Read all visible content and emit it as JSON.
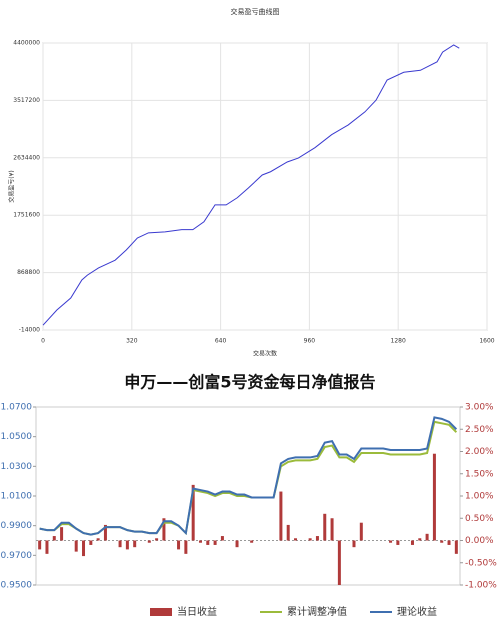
{
  "chart_data": [
    {
      "type": "line",
      "title": "交易盈亏曲线图",
      "y_label": "交易盈亏(¥)",
      "x_label": "交易次数",
      "color": "#3a3acf",
      "grid": true,
      "xlim": [
        0,
        1600
      ],
      "xticks": [
        0,
        320,
        640,
        960,
        1280,
        1600
      ],
      "ylim": [
        -14000,
        4400000
      ],
      "yticks": [
        -14000,
        868800,
        1751600,
        2634400,
        3517200,
        4400000
      ],
      "x": [
        0,
        50,
        100,
        140,
        160,
        200,
        260,
        300,
        340,
        380,
        440,
        500,
        540,
        580,
        620,
        660,
        700,
        740,
        790,
        820,
        880,
        920,
        980,
        1040,
        1100,
        1160,
        1200,
        1240,
        1300,
        1360,
        1420,
        1440,
        1480,
        1500
      ],
      "values": [
        60000,
        293000,
        478000,
        755000,
        830000,
        940000,
        1060000,
        1216000,
        1400000,
        1480000,
        1495000,
        1530000,
        1530000,
        1650000,
        1910000,
        1910000,
        2020000,
        2170000,
        2370000,
        2420000,
        2570000,
        2630000,
        2790000,
        2990000,
        3140000,
        3340000,
        3520000,
        3830000,
        3950000,
        3980000,
        4110000,
        4260000,
        4370000,
        4320000
      ]
    },
    {
      "type": "combo",
      "title": "申万——创富5号资金每日净值报告",
      "legend": "bottom",
      "categories": [
        null,
        null,
        null,
        null,
        null,
        null,
        null,
        null,
        null,
        null,
        null,
        null,
        null,
        null,
        null,
        null,
        null,
        null,
        null,
        null,
        null,
        null,
        null,
        null,
        null,
        null,
        null,
        null,
        null,
        null,
        null,
        null,
        null,
        null,
        null,
        null,
        null,
        null,
        null,
        null,
        null,
        null,
        null,
        null,
        null,
        null,
        null,
        null,
        null,
        null,
        null,
        null,
        null,
        null,
        null,
        null,
        null,
        null
      ],
      "ylim": [
        0.95,
        1.07
      ],
      "yticks": [
        {
          "value": 0.95,
          "label": "0.9500"
        },
        {
          "value": 0.97,
          "label": "0.9700"
        },
        {
          "value": 0.99,
          "label": "0.9900"
        },
        {
          "value": 1.01,
          "label": "1.0100"
        },
        {
          "value": 1.03,
          "label": "1.0300"
        },
        {
          "value": 1.05,
          "label": "1.0500"
        },
        {
          "value": 1.07,
          "label": "1.0700"
        }
      ],
      "y2lim": [
        -1,
        3
      ],
      "y2ticks": [
        {
          "value": -1,
          "label": "-1.00%"
        },
        {
          "value": -0.5,
          "label": "-0.50%"
        },
        {
          "value": 0,
          "label": "0.00%"
        },
        {
          "value": 0.5,
          "label": "0.50%"
        },
        {
          "value": 1,
          "label": "1.00%"
        },
        {
          "value": 1.5,
          "label": "1.50%"
        },
        {
          "value": 2,
          "label": "2.00%"
        },
        {
          "value": 2.5,
          "label": "2.50%"
        },
        {
          "value": 3,
          "label": "3.00%"
        }
      ],
      "series": [
        {
          "name": "当日收益",
          "type": "bar",
          "axis": "y2",
          "color": "#b03a3a",
          "values": [
            -0.2,
            -0.3,
            0.1,
            0.3,
            0,
            -0.25,
            -0.35,
            -0.1,
            0.05,
            0.35,
            0,
            -0.15,
            -0.2,
            -0.15,
            0,
            -0.05,
            0.05,
            0.5,
            0,
            -0.2,
            -0.3,
            1.25,
            -0.05,
            -0.1,
            -0.1,
            0.1,
            0,
            -0.15,
            0,
            -0.05,
            0,
            0,
            0,
            1.1,
            0.35,
            0.05,
            0,
            0.05,
            0.1,
            0.6,
            0.5,
            -1.0,
            0,
            -0.15,
            0.4,
            0,
            0,
            0,
            -0.05,
            -0.1,
            0,
            -0.1,
            0.05,
            0.15,
            1.95,
            -0.05,
            -0.1,
            -0.3
          ]
        },
        {
          "name": "累计调整净值",
          "type": "line",
          "color": "#9bbb3b",
          "values": [
            0.988,
            0.987,
            0.987,
            0.991,
            0.991,
            0.988,
            0.985,
            0.984,
            0.985,
            0.989,
            0.989,
            0.989,
            0.987,
            0.986,
            0.986,
            0.985,
            0.985,
            0.992,
            0.992,
            0.99,
            0.985,
            1.014,
            1.013,
            1.012,
            1.01,
            1.012,
            1.012,
            1.01,
            1.01,
            1.009,
            1.009,
            1.009,
            1.009,
            1.03,
            1.033,
            1.034,
            1.034,
            1.034,
            1.035,
            1.043,
            1.044,
            1.036,
            1.036,
            1.033,
            1.039,
            1.039,
            1.039,
            1.039,
            1.038,
            1.038,
            1.038,
            1.038,
            1.038,
            1.039,
            1.06,
            1.059,
            1.058,
            1.053
          ]
        },
        {
          "name": "理论收益",
          "type": "line",
          "color": "#3f6fb0",
          "values": [
            0.988,
            0.987,
            0.987,
            0.992,
            0.992,
            0.988,
            0.985,
            0.984,
            0.985,
            0.989,
            0.989,
            0.989,
            0.987,
            0.986,
            0.986,
            0.985,
            0.985,
            0.993,
            0.993,
            0.99,
            0.985,
            1.015,
            1.014,
            1.013,
            1.011,
            1.013,
            1.013,
            1.011,
            1.011,
            1.009,
            1.009,
            1.009,
            1.009,
            1.032,
            1.035,
            1.036,
            1.036,
            1.036,
            1.037,
            1.046,
            1.047,
            1.038,
            1.038,
            1.035,
            1.042,
            1.042,
            1.042,
            1.042,
            1.041,
            1.041,
            1.041,
            1.041,
            1.041,
            1.042,
            1.063,
            1.062,
            1.06,
            1.055
          ]
        }
      ]
    }
  ]
}
